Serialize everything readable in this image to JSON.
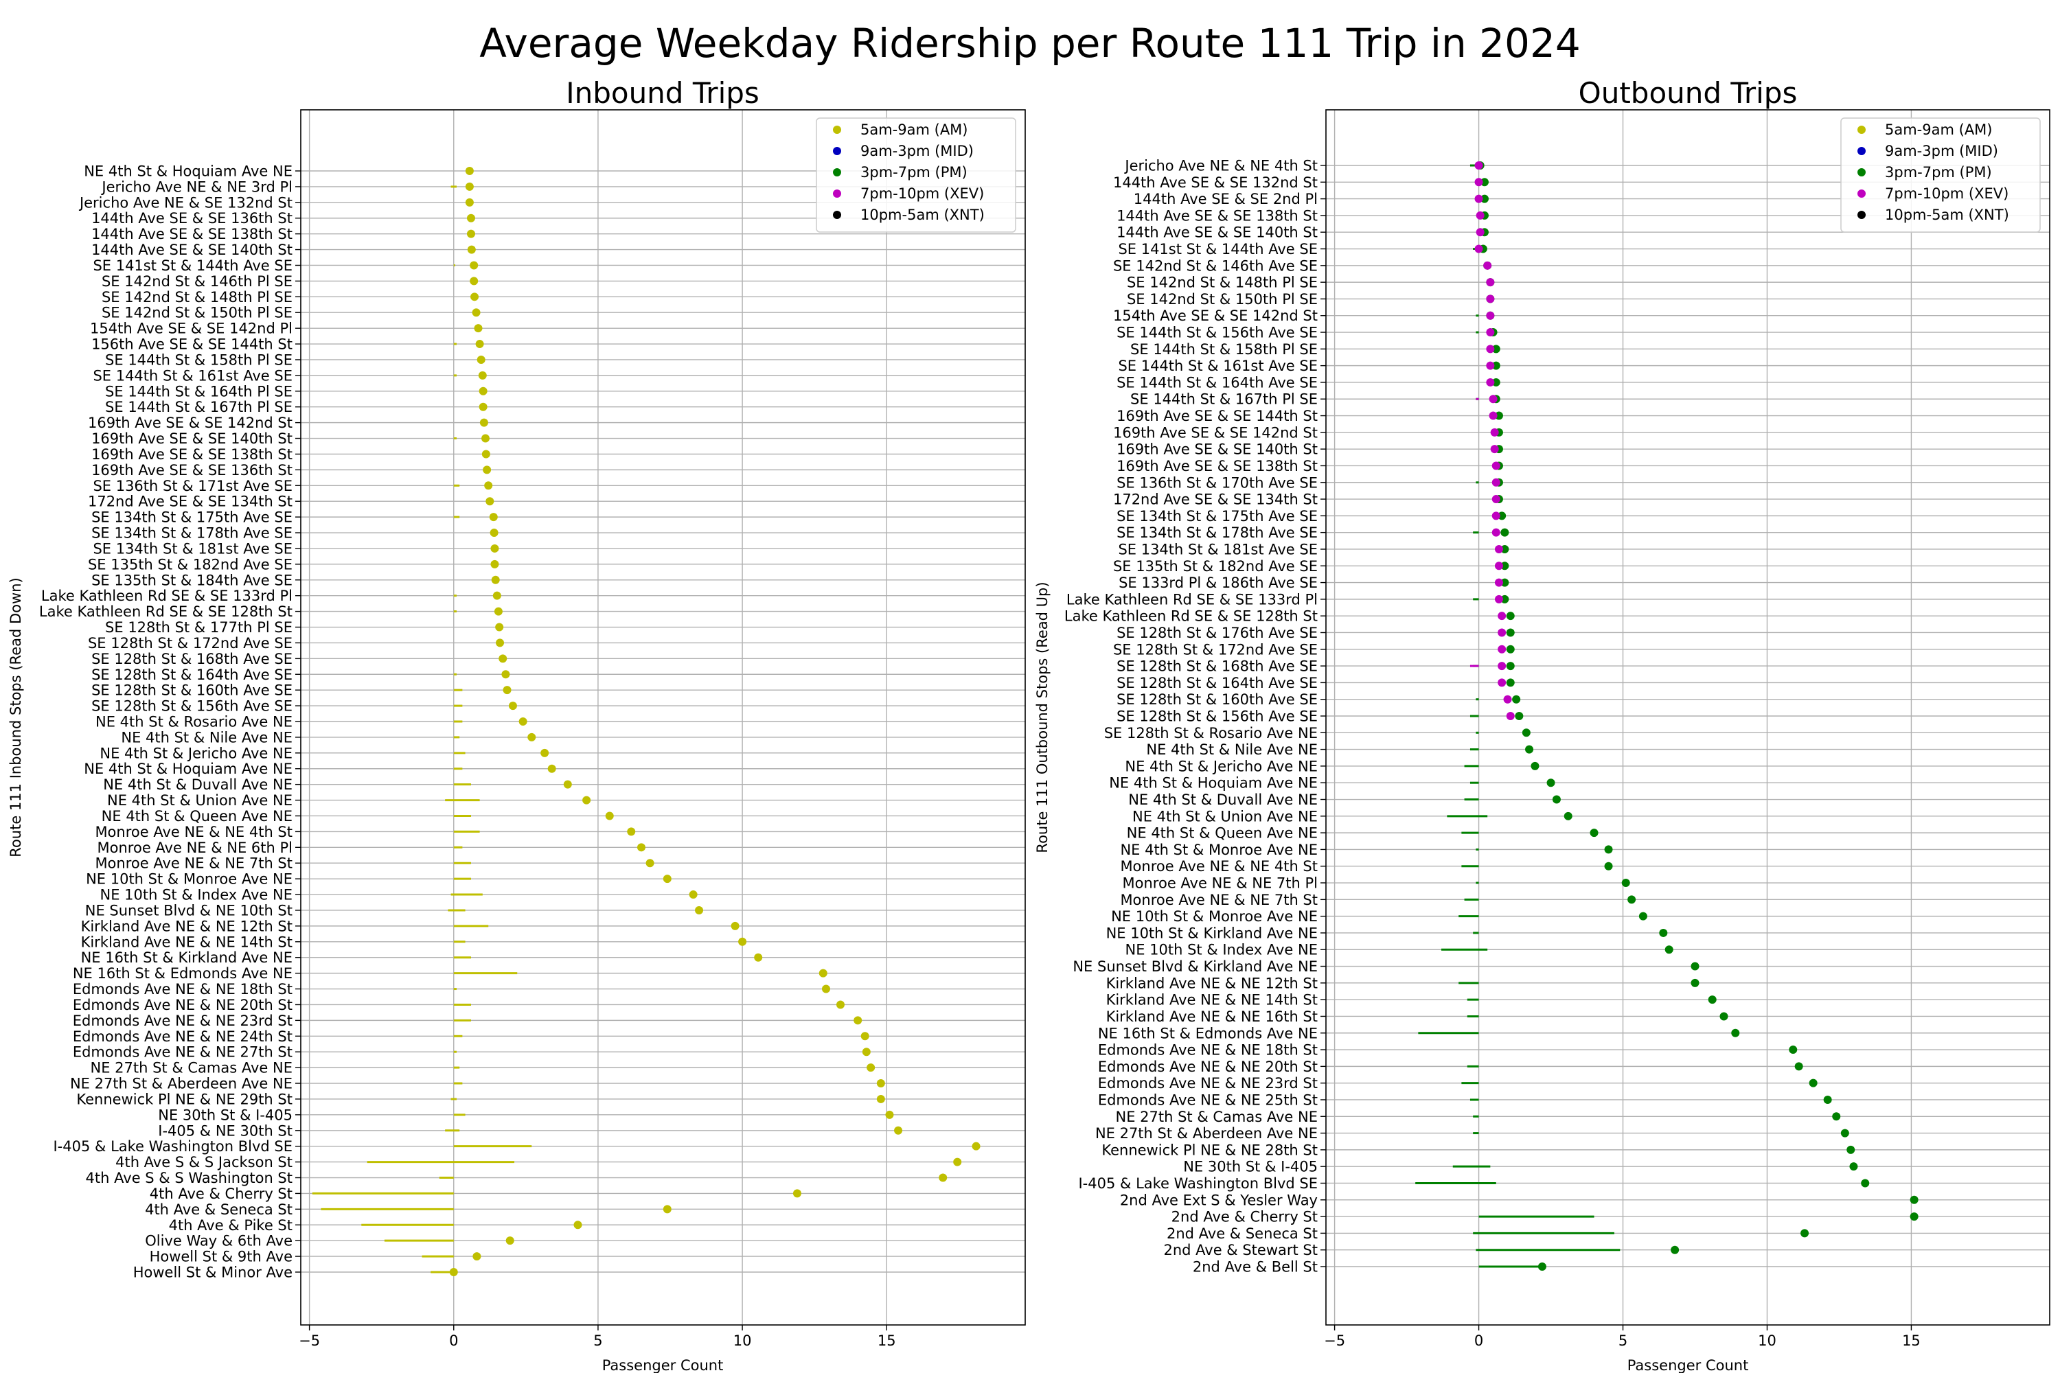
{
  "figure": {
    "suptitle": "Average Weekday Ridership per Route 111 Trip in 2024"
  },
  "legend_entries": [
    {
      "label": "5am-9am (AM)",
      "color": "#bfbf00"
    },
    {
      "label": "9am-3pm (MID)",
      "color": "#0000bf"
    },
    {
      "label": "3pm-7pm (PM)",
      "color": "#008000"
    },
    {
      "label": "7pm-10pm (XEV)",
      "color": "#bf00bf"
    },
    {
      "label": "10pm-5am (XNT)",
      "color": "#000000"
    }
  ],
  "chart_data": [
    {
      "type": "scatter",
      "title": "Inbound Trips",
      "xlabel": "Passenger Count",
      "ylabel": "Route 111 Inbound Stops (Read Down)",
      "xlim": [
        -5.3,
        19.8
      ],
      "xticks": [
        -5,
        0,
        5,
        10,
        15
      ],
      "grid": true,
      "legend_position": "top-right",
      "error_bars": true,
      "stops": [
        "NE 4th St & Hoquiam Ave NE",
        "Jericho Ave NE & NE 3rd Pl",
        "Jericho Ave NE & SE 132nd St",
        "144th Ave SE & SE 136th St",
        "144th Ave SE & SE 138th St",
        "144th Ave SE & SE 140th St",
        "SE 141st St & 144th Ave SE",
        "SE 142nd St & 146th Pl SE",
        "SE 142nd St & 148th Pl SE",
        "SE 142nd St & 150th Pl SE",
        "154th Ave SE & SE 142nd Pl",
        "156th Ave SE & SE 144th St",
        "SE 144th St & 158th Pl SE",
        "SE 144th St & 161st Ave SE",
        "SE 144th St & 164th Pl SE",
        "SE 144th St & 167th Pl SE",
        "169th Ave SE & SE 142nd St",
        "169th Ave SE & SE 140th St",
        "169th Ave SE & SE 138th St",
        "169th Ave SE & SE 136th St",
        "SE 136th St & 171st Ave SE",
        "172nd Ave SE & SE 134th St",
        "SE 134th St & 175th Ave SE",
        "SE 134th St & 178th Ave SE",
        "SE 134th St & 181st Ave SE",
        "SE 135th St & 182nd Ave SE",
        "SE 135th St & 184th Ave SE",
        "Lake Kathleen Rd SE & SE 133rd Pl",
        "Lake Kathleen Rd SE & SE 128th St",
        "SE 128th St & 177th Pl SE",
        "SE 128th St & 172nd Ave SE",
        "SE 128th St & 168th Ave SE",
        "SE 128th St & 164th Ave SE",
        "SE 128th St & 160th Ave SE",
        "SE 128th St & 156th Ave SE",
        "NE 4th St & Rosario Ave NE",
        "NE 4th St & Nile Ave NE",
        "NE 4th St & Jericho Ave NE",
        "NE 4th St & Hoquiam Ave NE",
        "NE 4th St & Duvall Ave NE",
        "NE 4th St & Union Ave NE",
        "NE 4th St & Queen Ave NE",
        "Monroe Ave NE & NE 4th St",
        "Monroe Ave NE & NE 6th Pl",
        "Monroe Ave NE & NE 7th St",
        "NE 10th St & Monroe Ave NE",
        "NE 10th St & Index Ave NE",
        "NE Sunset Blvd & NE 10th St",
        "Kirkland Ave NE & NE 12th St",
        "Kirkland Ave NE & NE 14th St",
        "NE 16th St & Kirkland Ave NE",
        "NE 16th St & Edmonds Ave NE",
        "Edmonds Ave NE & NE 18th St",
        "Edmonds Ave NE & NE 20th St",
        "Edmonds Ave NE & NE 23rd St",
        "Edmonds Ave NE & NE 24th St",
        "Edmonds Ave NE & NE 27th St",
        "NE 27th St & Camas Ave NE",
        "NE 27th St & Aberdeen Ave NE",
        "Kennewick Pl NE & NE 29th St",
        "NE 30th St & I-405",
        "I-405 & NE 30th St",
        "I-405 & Lake Washington Blvd SE",
        "4th Ave S & S Jackson St",
        "4th Ave S & S Washington St",
        "4th Ave & Cherry St",
        "4th Ave & Seneca St",
        "4th Ave & Pike St",
        "Olive Way & 6th Ave",
        "Howell St & 9th Ave",
        "Howell St & Minor Ave"
      ],
      "series": [
        {
          "name": "5am-9am (AM)",
          "color": "#bfbf00",
          "values": [
            0.55,
            0.55,
            0.55,
            0.6,
            0.6,
            0.62,
            0.7,
            0.7,
            0.72,
            0.78,
            0.85,
            0.9,
            0.95,
            1.0,
            1.02,
            1.02,
            1.05,
            1.1,
            1.12,
            1.15,
            1.2,
            1.25,
            1.38,
            1.4,
            1.42,
            1.42,
            1.45,
            1.5,
            1.55,
            1.58,
            1.6,
            1.7,
            1.8,
            1.85,
            2.05,
            2.4,
            2.7,
            3.15,
            3.4,
            3.95,
            4.6,
            5.4,
            6.15,
            6.5,
            6.8,
            7.4,
            8.3,
            8.5,
            9.75,
            10.0,
            10.55,
            12.8,
            12.9,
            13.4,
            14.0,
            14.25,
            14.3,
            14.45,
            14.8,
            14.8,
            15.1,
            15.4,
            18.1,
            17.45,
            16.95,
            11.9,
            7.4,
            4.3,
            1.95,
            0.8,
            0.0
          ],
          "error_low": [
            0.0,
            0.1,
            0.0,
            0.0,
            0.0,
            0.0,
            0.0,
            0.0,
            0.0,
            0.0,
            0.0,
            0.0,
            0.0,
            0.0,
            0.0,
            0.0,
            0.0,
            0.0,
            0.0,
            0.0,
            0.0,
            0.0,
            0.0,
            0.0,
            0.0,
            0.0,
            0.0,
            0.0,
            0.0,
            0.0,
            0.0,
            0.0,
            0.0,
            0.0,
            0.0,
            0.0,
            0.0,
            0.0,
            0.0,
            0.0,
            0.3,
            0.0,
            0.0,
            0.0,
            0.0,
            0.0,
            0.1,
            0.2,
            0.0,
            0.0,
            0.0,
            0.0,
            0.0,
            0.0,
            0.0,
            0.0,
            0.0,
            0.0,
            0.0,
            0.1,
            0.0,
            0.3,
            0.0,
            3.0,
            0.5,
            4.9,
            4.6,
            3.2,
            2.4,
            1.1,
            0.8
          ],
          "error_high": [
            0.0,
            0.1,
            0.0,
            0.0,
            0.0,
            0.0,
            0.05,
            0.0,
            0.0,
            0.0,
            0.0,
            0.1,
            0.0,
            0.1,
            0.0,
            0.0,
            0.0,
            0.1,
            0.0,
            0.0,
            0.2,
            0.0,
            0.2,
            0.0,
            0.0,
            0.0,
            0.0,
            0.1,
            0.1,
            0.0,
            0.0,
            0.0,
            0.1,
            0.3,
            0.3,
            0.3,
            0.2,
            0.4,
            0.3,
            0.6,
            0.9,
            0.6,
            0.9,
            0.3,
            0.6,
            0.6,
            1.0,
            0.4,
            1.2,
            0.4,
            0.6,
            2.2,
            0.1,
            0.6,
            0.6,
            0.3,
            0.1,
            0.2,
            0.3,
            0.1,
            0.4,
            0.2,
            2.7,
            2.1,
            0.0,
            0.0,
            0.0,
            0.0,
            0.0,
            0.0,
            0.0
          ]
        },
        {
          "name": "9am-3pm (MID)",
          "color": "#0000bf",
          "values": []
        },
        {
          "name": "3pm-7pm (PM)",
          "color": "#008000",
          "values": []
        },
        {
          "name": "7pm-10pm (XEV)",
          "color": "#bf00bf",
          "values": []
        },
        {
          "name": "10pm-5am (XNT)",
          "color": "#000000",
          "values": []
        }
      ]
    },
    {
      "type": "scatter",
      "title": "Outbound Trips",
      "xlabel": "Passenger Count",
      "ylabel": "Route 111 Outbound Stops (Read Up)",
      "xlim": [
        -5.3,
        19.8
      ],
      "xticks": [
        -5,
        0,
        5,
        10,
        15
      ],
      "grid": true,
      "legend_position": "top-right",
      "error_bars": true,
      "stops": [
        "Jericho Ave NE & NE 4th St",
        "144th Ave SE & SE 132nd St",
        "144th Ave SE & SE 2nd Pl",
        "144th Ave SE & SE 138th St",
        "144th Ave SE & SE 140th St",
        "SE 141st St & 144th Ave SE",
        "SE 142nd St & 146th Ave SE",
        "SE 142nd St & 148th Pl SE",
        "SE 142nd St & 150th Pl SE",
        "154th Ave SE & SE 142nd St",
        "SE 144th St & 156th Ave SE",
        "SE 144th St & 158th Pl SE",
        "SE 144th St & 161st Ave SE",
        "SE 144th St & 164th Ave SE",
        "SE 144th St & 167th Pl SE",
        "169th Ave SE & SE 144th St",
        "169th Ave SE & SE 142nd St",
        "169th Ave SE & SE 140th St",
        "169th Ave SE & SE 138th St",
        "SE 136th St & 170th Ave SE",
        "172nd Ave SE & SE 134th St",
        "SE 134th St & 175th Ave SE",
        "SE 134th St & 178th Ave SE",
        "SE 134th St & 181st Ave SE",
        "SE 135th St & 182nd Ave SE",
        "SE 133rd Pl & 186th Ave SE",
        "Lake Kathleen Rd SE & SE 133rd Pl",
        "Lake Kathleen Rd SE & SE 128th St",
        "SE 128th St & 176th Ave SE",
        "SE 128th St & 172nd Ave SE",
        "SE 128th St & 168th Ave SE",
        "SE 128th St & 164th Ave SE",
        "SE 128th St & 160th Ave SE",
        "SE 128th St & 156th Ave SE",
        "SE 128th St & Rosario Ave NE",
        "NE 4th St & Nile Ave NE",
        "NE 4th St & Jericho Ave NE",
        "NE 4th St & Hoquiam Ave NE",
        "NE 4th St & Duvall Ave NE",
        "NE 4th St & Union Ave NE",
        "NE 4th St & Queen Ave NE",
        "NE 4th St & Monroe Ave NE",
        "Monroe Ave NE & NE 4th St",
        "Monroe Ave NE & NE 7th Pl",
        "Monroe Ave NE & NE 7th St",
        "NE 10th St & Monroe Ave NE",
        "NE 10th St & Kirkland Ave NE",
        "NE 10th St & Index Ave NE",
        "NE Sunset Blvd & Kirkland Ave NE",
        "Kirkland Ave NE & NE 12th St",
        "Kirkland Ave NE & NE 14th St",
        "Kirkland Ave NE & NE 16th St",
        "NE 16th St & Edmonds Ave NE",
        "Edmonds Ave NE & NE 18th St",
        "Edmonds Ave NE & NE 20th St",
        "Edmonds Ave NE & NE 23rd St",
        "Edmonds Ave NE & NE 25th St",
        "NE 27th St & Camas Ave NE",
        "NE 27th St & Aberdeen Ave NE",
        "Kennewick Pl NE & NE 28th St",
        "NE 30th St & I-405",
        "I-405 & Lake Washington Blvd SE",
        "2nd Ave Ext S & Yesler Way",
        "2nd Ave & Cherry St",
        "2nd Ave & Seneca St",
        "2nd Ave & Stewart St",
        "2nd Ave & Bell St"
      ],
      "series": [
        {
          "name": "5am-9am (AM)",
          "color": "#bfbf00",
          "values": []
        },
        {
          "name": "9am-3pm (MID)",
          "color": "#0000bf",
          "values": []
        },
        {
          "name": "3pm-7pm (PM)",
          "color": "#008000",
          "values": [
            0.05,
            0.2,
            0.2,
            0.2,
            0.2,
            0.15,
            0.3,
            0.4,
            0.4,
            0.4,
            0.5,
            0.6,
            0.6,
            0.6,
            0.6,
            0.7,
            0.7,
            0.7,
            0.7,
            0.7,
            0.7,
            0.8,
            0.9,
            0.9,
            0.9,
            0.9,
            0.9,
            1.1,
            1.1,
            1.1,
            1.1,
            1.1,
            1.3,
            1.4,
            1.65,
            1.75,
            1.95,
            2.5,
            2.7,
            3.1,
            4.0,
            4.5,
            4.5,
            5.1,
            5.3,
            5.7,
            6.4,
            6.6,
            7.5,
            7.5,
            8.1,
            8.5,
            8.9,
            10.9,
            11.1,
            11.6,
            12.1,
            12.4,
            12.7,
            12.9,
            13.0,
            13.4,
            15.1,
            15.1,
            11.3,
            6.8,
            2.2
          ],
          "error_low": [
            0.3,
            0.0,
            0.0,
            0.0,
            0.0,
            0.2,
            0.0,
            0.0,
            0.0,
            0.1,
            0.1,
            0.0,
            0.0,
            0.0,
            0.1,
            0.0,
            0.0,
            0.0,
            0.0,
            0.1,
            0.0,
            0.0,
            0.2,
            0.0,
            0.0,
            0.0,
            0.2,
            0.0,
            0.0,
            0.0,
            0.2,
            0.0,
            0.1,
            0.3,
            0.1,
            0.3,
            0.5,
            0.3,
            0.5,
            1.1,
            0.6,
            0.1,
            0.6,
            0.1,
            0.5,
            0.7,
            0.2,
            1.3,
            0.0,
            0.7,
            0.4,
            0.4,
            2.1,
            0.0,
            0.4,
            0.6,
            0.3,
            0.2,
            0.2,
            0.0,
            0.9,
            2.2,
            0.0,
            0.0,
            0.2,
            0.1,
            0.0
          ],
          "error_high": [
            0.0,
            0.0,
            0.0,
            0.0,
            0.0,
            0.0,
            0.0,
            0.0,
            0.0,
            0.0,
            0.0,
            0.0,
            0.0,
            0.0,
            0.0,
            0.0,
            0.0,
            0.0,
            0.0,
            0.0,
            0.0,
            0.0,
            0.0,
            0.0,
            0.0,
            0.0,
            0.0,
            0.0,
            0.0,
            0.0,
            0.0,
            0.0,
            0.0,
            0.0,
            0.0,
            0.0,
            0.0,
            0.0,
            0.0,
            0.3,
            0.0,
            0.0,
            0.0,
            0.0,
            0.0,
            0.0,
            0.0,
            0.3,
            0.0,
            0.0,
            0.0,
            0.0,
            0.0,
            0.0,
            0.0,
            0.0,
            0.0,
            0.0,
            0.0,
            0.0,
            0.4,
            0.6,
            0.0,
            4.0,
            4.7,
            4.9,
            2.2
          ]
        },
        {
          "name": "7pm-10pm (XEV)",
          "color": "#bf00bf",
          "values": [
            0.0,
            0.0,
            0.0,
            0.05,
            0.05,
            0.0,
            0.3,
            0.4,
            0.4,
            0.4,
            0.4,
            0.4,
            0.4,
            0.4,
            0.5,
            0.5,
            0.55,
            0.55,
            0.6,
            0.6,
            0.6,
            0.6,
            0.6,
            0.7,
            0.7,
            0.7,
            0.7,
            0.8,
            0.8,
            0.8,
            0.8,
            0.8,
            1.0,
            1.1
          ],
          "error_low": [
            0.0,
            0.0,
            0.0,
            0.0,
            0.0,
            0.0,
            0.0,
            0.0,
            0.0,
            0.0,
            0.0,
            0.0,
            0.0,
            0.0,
            0.1,
            0.0,
            0.0,
            0.0,
            0.0,
            0.0,
            0.0,
            0.0,
            0.0,
            0.0,
            0.0,
            0.0,
            0.0,
            0.0,
            0.0,
            0.0,
            0.3,
            0.0,
            0.0,
            0.0
          ],
          "error_high": [
            0.0,
            0.0,
            0.0,
            0.0,
            0.0,
            0.0,
            0.0,
            0.0,
            0.0,
            0.0,
            0.0,
            0.0,
            0.0,
            0.0,
            0.0,
            0.0,
            0.0,
            0.0,
            0.0,
            0.0,
            0.0,
            0.0,
            0.0,
            0.0,
            0.0,
            0.0,
            0.0,
            0.0,
            0.0,
            0.0,
            0.0,
            0.0,
            0.0,
            0.0
          ]
        },
        {
          "name": "10pm-5am (XNT)",
          "color": "#000000",
          "values": []
        }
      ]
    }
  ]
}
